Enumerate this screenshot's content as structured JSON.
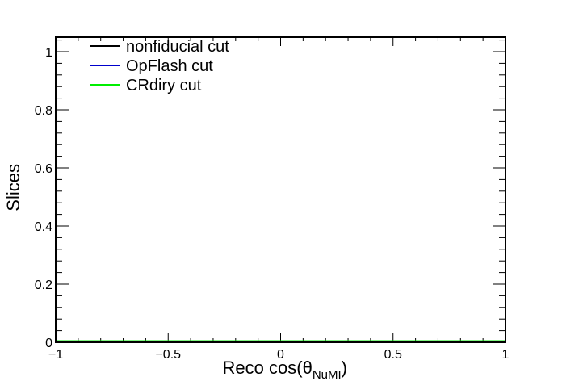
{
  "chart_data": {
    "type": "line",
    "xlabel": "Reco cos(θ",
    "xlabel_subscript": "NuMI",
    "xlabel_suffix": ")",
    "ylabel": "Slices",
    "xlim": [
      -1,
      1
    ],
    "ylim": [
      0,
      1.05
    ],
    "x_ticks": [
      -1,
      -0.5,
      0,
      0.5,
      1
    ],
    "x_tick_labels": [
      "−1",
      "−0.5",
      "0",
      "0.5",
      "1"
    ],
    "y_ticks": [
      0,
      0.2,
      0.4,
      0.6,
      0.8,
      1
    ],
    "y_tick_labels": [
      "0",
      "0.2",
      "0.4",
      "0.6",
      "0.8",
      "1"
    ],
    "grid": false,
    "legend_position": "top-left",
    "series": [
      {
        "name": "nonfiducial cut",
        "color": "#000000",
        "x": [
          -1,
          1
        ],
        "y": [
          0,
          0
        ]
      },
      {
        "name": "OpFlash cut",
        "color": "#0000cc",
        "x": [
          -1,
          1
        ],
        "y": [
          0,
          0
        ]
      },
      {
        "name": "CRdiry cut",
        "color": "#00ee00",
        "x": [
          -1,
          1
        ],
        "y": [
          0,
          0
        ]
      }
    ]
  }
}
